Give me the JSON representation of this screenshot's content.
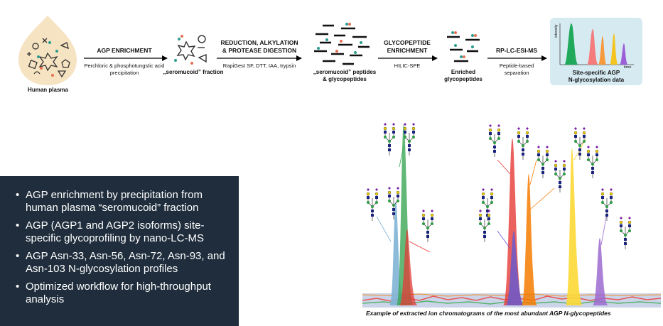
{
  "workflow": {
    "start_label": "Human plasma",
    "step1": {
      "title": "AGP ENRICHMENT",
      "sub": "Perchloric & phosphotungstic acid precipitation"
    },
    "node1": "„seromucoid” fraction",
    "step2": {
      "title_1": "REDUCTION, ALKYLATION",
      "title_2": "& PROTEASE DIGESTION",
      "sub": "RapiGest SF, DTT, IAA, trypsin"
    },
    "node2_1": "„seromucoid” peptides",
    "node2_2": "& glycopeptides",
    "step3": {
      "title_1": "GLYCOPEPTIDE",
      "title_2": "ENRICHMENT",
      "sub": "HILIC-SPE"
    },
    "node3_1": "Enriched",
    "node3_2": "glycopeptides",
    "step4": {
      "title": "RP-LC-ESI-MS",
      "sub_1": "Peptide-based",
      "sub_2": "separation"
    },
    "result": {
      "line1": "Site-specific AGP",
      "line2": "N-glycosylation data",
      "y_axis": "intensity",
      "x_axis": "time"
    }
  },
  "summary": {
    "bullets": [
      "AGP enrichment by precipitation from human plasma “seromucoid” fraction",
      "AGP (AGP1 and AGP2 isoforms) site-specific glycoprofiling by nano-LC-MS",
      "AGP Asn-33, Asn-56, Asn-72, Asn-93, and Asn-103 N-glycosylation profiles",
      "Optimized workflow for high-throughput analysis"
    ]
  },
  "figure": {
    "caption": "Example of extracted ion chromatograms of the most abundant AGP N-glycopeptides",
    "peak_colors": [
      "#7fb3d5",
      "#3aa655",
      "#e53935",
      "#6a5acd",
      "#f57c00",
      "#fdd835",
      "#9c6ad0"
    ]
  },
  "colors": {
    "summary_bg": "#1f2d3c",
    "result_bg": "#d6eaf2",
    "glycan_blue": "#1a237e",
    "glycan_yellow": "#f2d000",
    "glycan_purple": "#7b1fa2"
  }
}
